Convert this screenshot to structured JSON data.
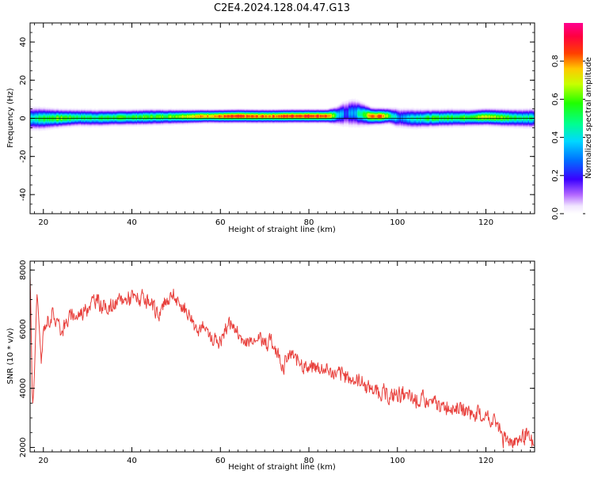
{
  "title": "C2E4.2024.128.04.47.G13",
  "chart_data": [
    {
      "type": "heatmap",
      "xlabel": "Height of straight line (km)",
      "ylabel": "Frequency (Hz)",
      "xlim": [
        17,
        131
      ],
      "ylim": [
        -50,
        50
      ],
      "x_ticks": [
        20,
        40,
        60,
        80,
        100,
        120
      ],
      "y_ticks": [
        -40,
        -20,
        0,
        20,
        40
      ],
      "grid": false,
      "colorbar": {
        "label": "Normalized spectral amplitude",
        "range": [
          0.0,
          1.0
        ],
        "ticks": [
          0.0,
          0.2,
          0.4,
          0.6,
          0.8
        ],
        "tick_labels": [
          "0.0",
          "0.2",
          "0.4",
          "0.6",
          "0.8"
        ]
      },
      "band_profile": {
        "x": [
          17,
          20,
          24,
          28,
          32,
          36,
          40,
          44,
          48,
          52,
          56,
          60,
          64,
          68,
          72,
          76,
          80,
          84,
          86,
          88,
          90,
          92,
          94,
          96,
          98,
          100,
          104,
          108,
          112,
          116,
          120,
          124,
          128,
          131
        ],
        "center_hz": [
          0.0,
          0.0,
          0.2,
          0.5,
          0.3,
          0.5,
          0.6,
          0.8,
          0.9,
          1.0,
          1.2,
          1.2,
          1.3,
          1.2,
          1.2,
          1.3,
          1.3,
          1.3,
          1.6,
          2.6,
          3.0,
          2.2,
          1.2,
          1.2,
          1.4,
          0.4,
          0.0,
          0.2,
          0.4,
          0.4,
          0.8,
          0.4,
          0.2,
          0.2
        ],
        "half_width_hz": [
          2.6,
          2.4,
          2.0,
          1.9,
          1.9,
          1.8,
          1.8,
          1.8,
          1.7,
          1.6,
          1.5,
          1.5,
          1.5,
          1.5,
          1.5,
          1.5,
          1.5,
          1.5,
          2.0,
          3.0,
          3.2,
          2.6,
          1.9,
          1.8,
          1.8,
          2.3,
          2.2,
          2.0,
          2.0,
          1.9,
          1.9,
          2.0,
          2.1,
          2.2
        ],
        "peak_amplitude": [
          0.45,
          0.55,
          0.62,
          0.52,
          0.52,
          0.55,
          0.56,
          0.58,
          0.6,
          0.72,
          0.78,
          0.82,
          0.86,
          0.82,
          0.84,
          0.88,
          0.9,
          0.86,
          0.5,
          0.25,
          0.32,
          0.52,
          0.84,
          0.84,
          0.6,
          0.3,
          0.48,
          0.55,
          0.55,
          0.6,
          0.7,
          0.62,
          0.5,
          0.45
        ]
      }
    },
    {
      "type": "line",
      "xlabel": "Height of straight line (km)",
      "ylabel": "SNR (10 * v/v)",
      "xlim": [
        17,
        131
      ],
      "ylim": [
        1850,
        8300
      ],
      "x_ticks": [
        20,
        40,
        60,
        80,
        100,
        120
      ],
      "y_ticks": [
        2000,
        4000,
        6000,
        8000
      ],
      "grid": false,
      "series": [
        {
          "color": "#e8403c",
          "x": [
            17,
            17.5,
            18,
            18.5,
            19,
            19.5,
            20,
            21,
            22,
            24,
            26,
            28,
            30,
            32,
            34,
            36,
            38,
            40,
            42,
            44,
            46,
            48,
            49,
            50,
            52,
            54,
            56,
            58,
            60,
            62,
            64,
            66,
            68,
            70,
            72,
            74,
            76,
            78,
            80,
            82,
            84,
            86,
            88,
            90,
            92,
            94,
            96,
            98,
            100,
            102,
            104,
            106,
            108,
            110,
            112,
            114,
            116,
            118,
            120,
            122,
            123,
            124,
            126,
            128,
            129,
            130,
            131
          ],
          "y": [
            7800,
            3000,
            4800,
            7500,
            6000,
            4800,
            6000,
            6300,
            6500,
            6000,
            6400,
            6500,
            6800,
            7000,
            6700,
            6800,
            7000,
            7100,
            7000,
            6800,
            6500,
            7000,
            7200,
            6900,
            6700,
            6200,
            6000,
            5700,
            5600,
            6300,
            5800,
            5500,
            5800,
            5600,
            5500,
            4800,
            5100,
            4900,
            4700,
            4700,
            4600,
            4500,
            4400,
            4300,
            4200,
            4000,
            3900,
            3700,
            3800,
            3700,
            3600,
            3550,
            3500,
            3400,
            3400,
            3300,
            3200,
            3100,
            3000,
            2900,
            2700,
            2200,
            2300,
            2300,
            2400,
            2200,
            2050
          ]
        }
      ]
    }
  ]
}
